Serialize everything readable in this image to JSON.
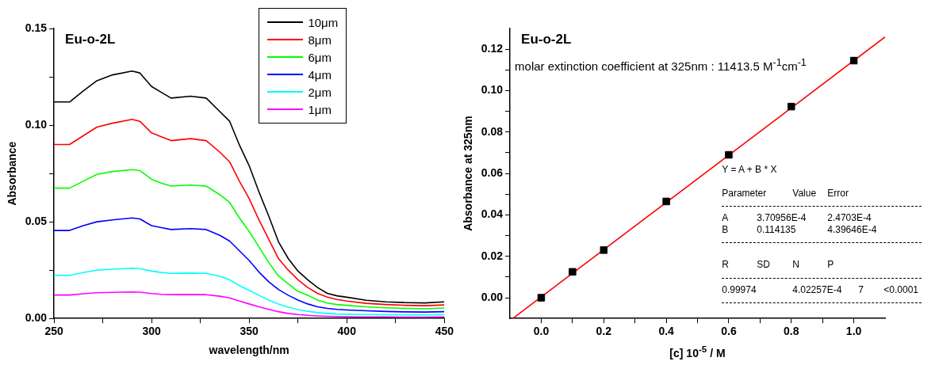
{
  "chart_data": [
    {
      "type": "line",
      "title": "Eu-o-2L",
      "xlabel": "wavelength/nm",
      "ylabel": "Absorbance",
      "legend": "top right",
      "x": [
        250,
        258,
        265,
        272,
        280,
        290,
        294,
        300,
        305,
        310,
        320,
        328,
        335,
        340,
        345,
        350,
        355,
        360,
        365,
        370,
        375,
        380,
        385,
        390,
        395,
        400,
        410,
        420,
        430,
        440,
        450
      ],
      "series": [
        {
          "name": "10μm",
          "color": "#000000",
          "values": [
            0.112,
            0.112,
            0.1177,
            0.123,
            0.126,
            0.128,
            0.127,
            0.12,
            0.117,
            0.114,
            0.115,
            0.114,
            0.107,
            0.102,
            0.0897,
            0.079,
            0.0655,
            0.053,
            0.0397,
            0.031,
            0.0245,
            0.02,
            0.016,
            0.013,
            0.0117,
            0.011,
            0.0094,
            0.0086,
            0.0082,
            0.008,
            0.0086
          ]
        },
        {
          "name": "8μm",
          "color": "#ff0000",
          "values": [
            0.09,
            0.09,
            0.0945,
            0.099,
            0.101,
            0.103,
            0.102,
            0.096,
            0.094,
            0.092,
            0.093,
            0.092,
            0.086,
            0.081,
            0.071,
            0.062,
            0.051,
            0.041,
            0.031,
            0.025,
            0.02,
            0.016,
            0.013,
            0.011,
            0.0098,
            0.009,
            0.0078,
            0.0072,
            0.0068,
            0.0066,
            0.007
          ]
        },
        {
          "name": "6μm",
          "color": "#00ff00",
          "values": [
            0.0674,
            0.0674,
            0.071,
            0.0745,
            0.076,
            0.077,
            0.0765,
            0.072,
            0.07,
            0.0685,
            0.069,
            0.0685,
            0.064,
            0.06,
            0.052,
            0.045,
            0.037,
            0.029,
            0.022,
            0.018,
            0.014,
            0.012,
            0.0095,
            0.008,
            0.0072,
            0.0068,
            0.006,
            0.0055,
            0.0052,
            0.005,
            0.0054
          ]
        },
        {
          "name": "4μm",
          "color": "#0000ff",
          "values": [
            0.0455,
            0.0455,
            0.048,
            0.05,
            0.051,
            0.052,
            0.0515,
            0.048,
            0.047,
            0.046,
            0.0465,
            0.046,
            0.043,
            0.04,
            0.035,
            0.03,
            0.024,
            0.019,
            0.015,
            0.012,
            0.0095,
            0.0075,
            0.006,
            0.0052,
            0.0047,
            0.0044,
            0.004,
            0.0036,
            0.0034,
            0.0033,
            0.0035
          ]
        },
        {
          "name": "2μm",
          "color": "#00ffff",
          "values": [
            0.0223,
            0.0223,
            0.0237,
            0.025,
            0.0255,
            0.026,
            0.0258,
            0.0245,
            0.0238,
            0.0233,
            0.0235,
            0.0233,
            0.0218,
            0.02,
            0.017,
            0.0145,
            0.012,
            0.0095,
            0.0075,
            0.0058,
            0.0046,
            0.0037,
            0.003,
            0.0026,
            0.0023,
            0.0022,
            0.002,
            0.0019,
            0.0018,
            0.0018,
            0.0019
          ]
        },
        {
          "name": "1μm",
          "color": "#ff00ff",
          "values": [
            0.0121,
            0.0121,
            0.0128,
            0.0133,
            0.0135,
            0.0137,
            0.0136,
            0.0129,
            0.0125,
            0.0123,
            0.0124,
            0.0123,
            0.0115,
            0.0106,
            0.009,
            0.0075,
            0.006,
            0.0047,
            0.0035,
            0.0026,
            0.002,
            0.0016,
            0.0013,
            0.0011,
            0.001,
            0.0009,
            0.0008,
            0.0008,
            0.0007,
            0.0007,
            0.0008
          ]
        }
      ],
      "xlim": [
        250,
        450
      ],
      "ylim": [
        0,
        0.15
      ],
      "xticks": [
        250,
        {
          "value": 275,
          "label": null
        },
        300,
        {
          "value": 325,
          "label": null
        },
        350,
        {
          "value": 375,
          "label": null
        },
        400,
        {
          "value": 425,
          "label": null
        },
        450
      ],
      "yticks": [
        {
          "value": 0,
          "label": "0.00"
        },
        {
          "value": 0.025,
          "label": null
        },
        {
          "value": 0.05,
          "label": "0.05"
        },
        {
          "value": 0.075,
          "label": null
        },
        {
          "value": 0.1,
          "label": "0.10"
        },
        {
          "value": 0.125,
          "label": null
        },
        {
          "value": 0.15,
          "label": "0.15"
        }
      ]
    },
    {
      "type": "scatter",
      "title": "Eu-o-2L",
      "xlabel": "[c] 10$^{-5}$ / M",
      "ylabel": "Absorbance at 325nm",
      "x": [
        0,
        0.1,
        0.2,
        0.4,
        0.6,
        0.8,
        1.0
      ],
      "series": [
        {
          "color": "#000000",
          "marker": "square",
          "values": [
            0,
            0.0125,
            0.023,
            0.0465,
            0.069,
            0.0923,
            0.1145
          ]
        },
        {
          "type": "line",
          "color": "#ff0000",
          "x": [
            -0.09,
            1.1
          ],
          "values": [
            -0.0099,
            0.1259
          ]
        }
      ],
      "xlim": [
        -0.1,
        1.1
      ],
      "ylim": [
        -0.01,
        0.13
      ],
      "xticks": [
        {
          "value": 0,
          "label": "0.0"
        },
        {
          "value": 0.1,
          "label": null
        },
        {
          "value": 0.2,
          "label": "0.2"
        },
        {
          "value": 0.3,
          "label": null
        },
        {
          "value": 0.4,
          "label": "0.4"
        },
        {
          "value": 0.5,
          "label": null
        },
        {
          "value": 0.6,
          "label": "0.6"
        },
        {
          "value": 0.7,
          "label": null
        },
        {
          "value": 0.8,
          "label": "0.8"
        },
        {
          "value": 0.9,
          "label": null
        },
        {
          "value": 1.0,
          "label": "1.0"
        }
      ],
      "yticks": [
        {
          "value": 0,
          "label": "0.00"
        },
        {
          "value": 0.01,
          "label": null
        },
        {
          "value": 0.02,
          "label": "0.02"
        },
        {
          "value": 0.03,
          "label": null
        },
        {
          "value": 0.04,
          "label": "0.04"
        },
        {
          "value": 0.05,
          "label": null
        },
        {
          "value": 0.06,
          "label": "0.06"
        },
        {
          "value": 0.07,
          "label": null
        },
        {
          "value": 0.08,
          "label": "0.08"
        },
        {
          "value": 0.09,
          "label": null
        },
        {
          "value": 0.1,
          "label": "0.10"
        },
        {
          "value": 0.11,
          "label": null
        },
        {
          "value": 0.12,
          "label": "0.12"
        }
      ],
      "annotations": [
        "molar extinction coefficient at 325nm : 11413.5 M$^{-1}$cm$^{-1}$",
        "Y = A + B * X",
        "Parameter",
        "Value",
        "Error",
        "A",
        "3.70956E-4",
        "2.4703E-4",
        "B",
        "0.114135",
        "4.39646E-4",
        "R",
        "SD",
        "N",
        "P",
        "0.99974",
        "4.02257E-4",
        "7",
        "<0.0001"
      ]
    }
  ]
}
